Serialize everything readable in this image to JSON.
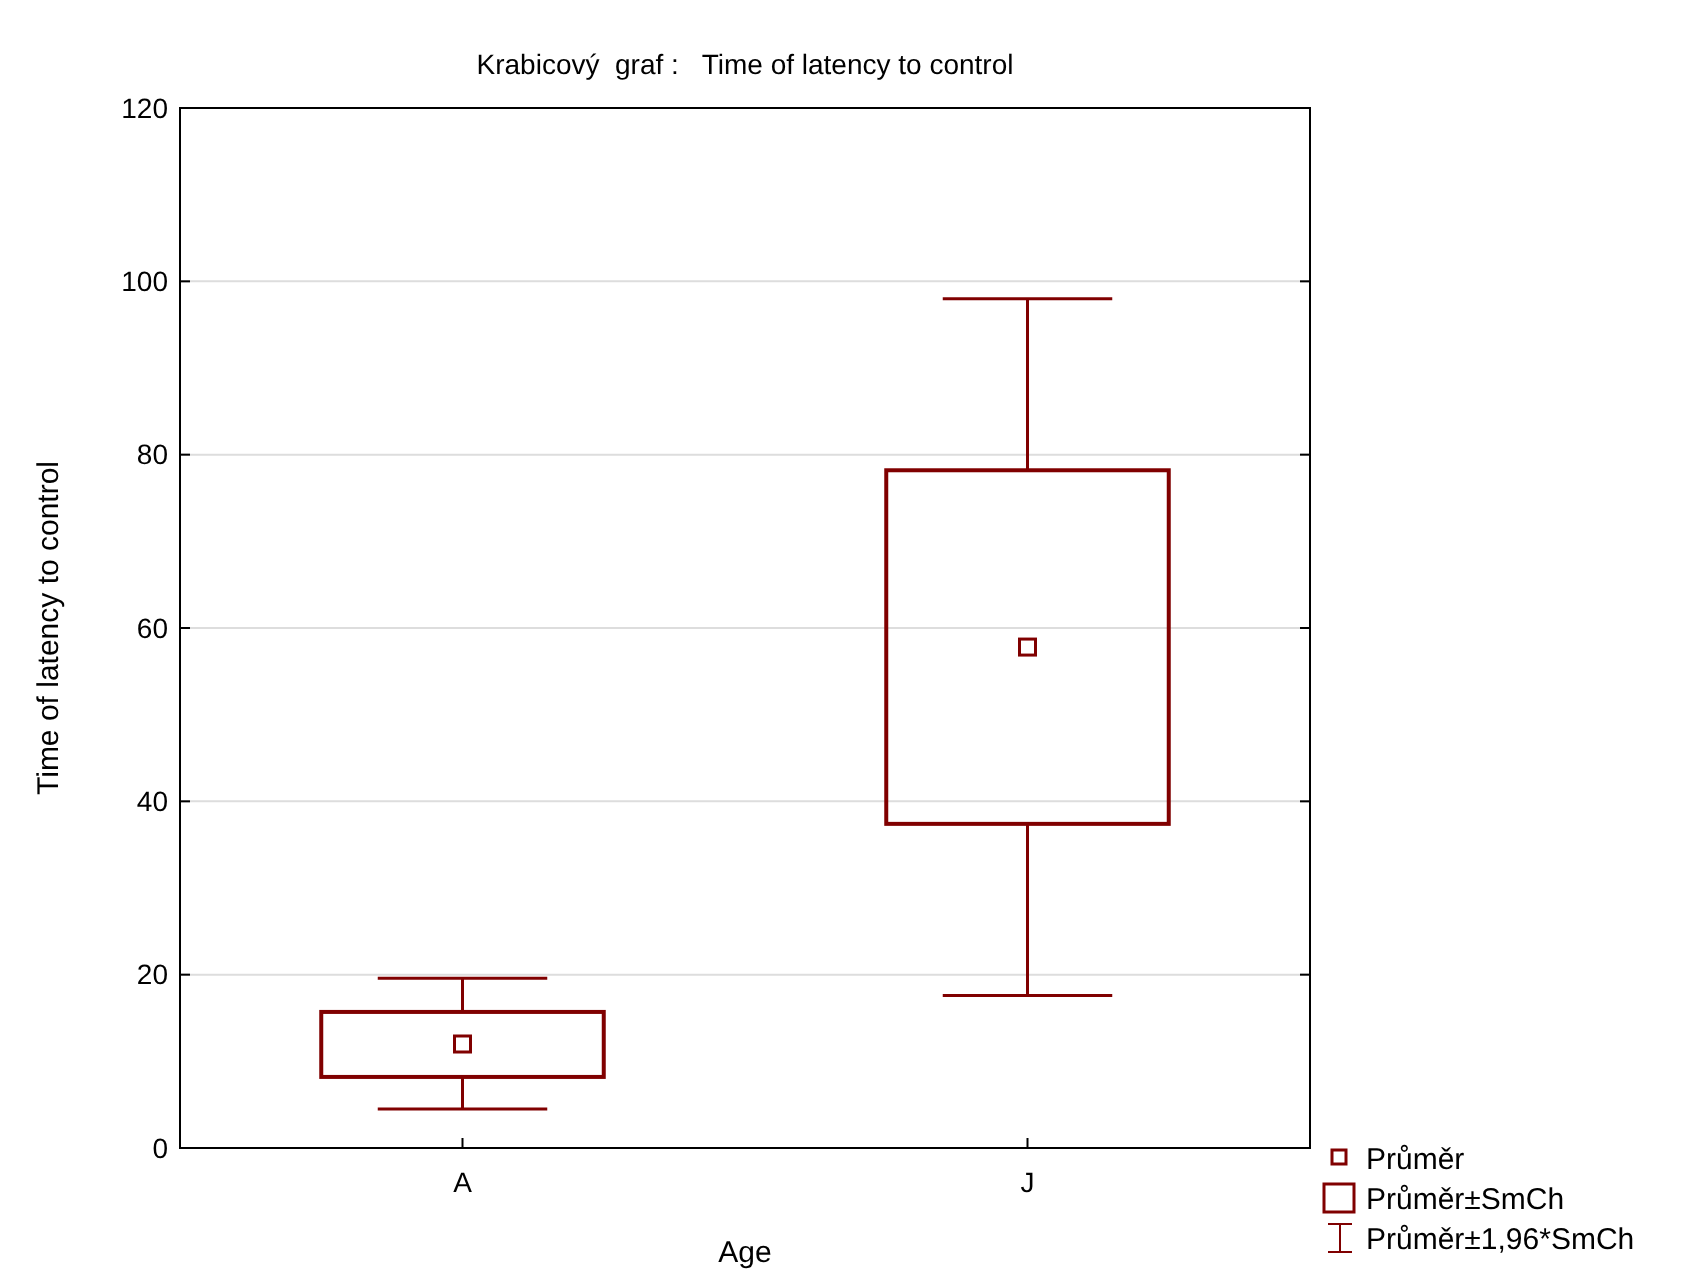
{
  "chart_data": {
    "type": "box",
    "title": "Krabicový  graf :   Time of latency to control",
    "xlabel": "Age",
    "ylabel": "Time of latency to control",
    "categories": [
      "A",
      "J"
    ],
    "color": "#800000",
    "boxes": [
      {
        "low": 4.5,
        "q1": 8.2,
        "mean": 12.0,
        "q3": 15.7,
        "high": 19.6
      },
      {
        "low": 17.6,
        "q1": 37.4,
        "mean": 57.8,
        "q3": 78.2,
        "high": 98.0
      }
    ],
    "ylim": [
      0,
      120
    ],
    "yticks": [
      0,
      20,
      40,
      60,
      80,
      100,
      120
    ],
    "grid": "y",
    "annotations": [
      "Průměr",
      "Průměr±SmCh",
      "Průměr±1,96*SmCh"
    ]
  }
}
